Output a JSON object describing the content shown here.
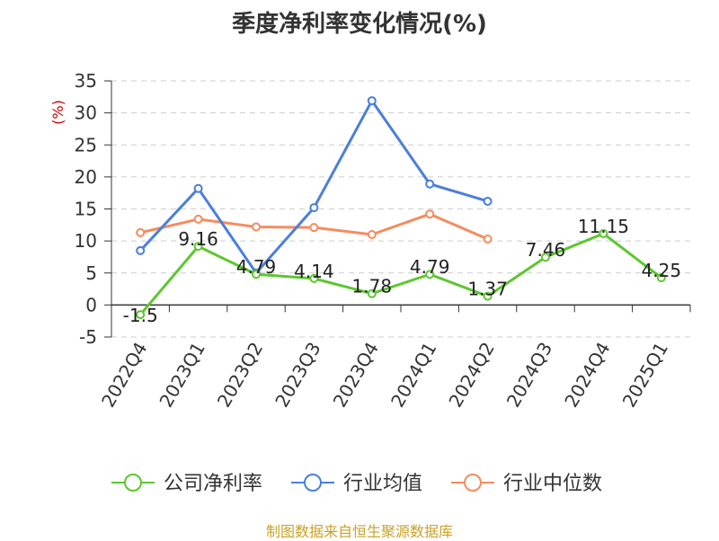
{
  "chart_data": {
    "type": "line",
    "title": "季度净利率变化情况(%)",
    "ylabel": "(%)",
    "xlabel": "",
    "categories": [
      "2022Q4",
      "2023Q1",
      "2023Q2",
      "2023Q3",
      "2023Q4",
      "2024Q1",
      "2024Q2",
      "2024Q3",
      "2024Q4",
      "2025Q1"
    ],
    "ylim": [
      -5,
      35
    ],
    "yticks": [
      -5,
      0,
      5,
      10,
      15,
      20,
      25,
      30,
      35
    ],
    "grid": true,
    "legend_position": "bottom",
    "series": [
      {
        "name": "公司净利率",
        "color": "#5cc72e",
        "values": [
          -1.5,
          9.16,
          4.79,
          4.14,
          1.78,
          4.79,
          1.37,
          7.46,
          11.15,
          4.25
        ],
        "labels": [
          "-1.5",
          "9.16",
          "4.79",
          "4.14",
          "1.78",
          "4.79",
          "1.37",
          "7.46",
          "11.15",
          "4.25"
        ]
      },
      {
        "name": "行业均值",
        "color": "#4a7fdc",
        "values": [
          8.5,
          18.2,
          5.0,
          15.2,
          31.9,
          18.9,
          16.2,
          null,
          null,
          null
        ]
      },
      {
        "name": "行业中位数",
        "color": "#f58c5e",
        "values": [
          11.3,
          13.4,
          12.2,
          12.1,
          11.0,
          14.2,
          10.3,
          null,
          null,
          null
        ]
      }
    ]
  },
  "source": "制图数据来自恒生聚源数据库"
}
